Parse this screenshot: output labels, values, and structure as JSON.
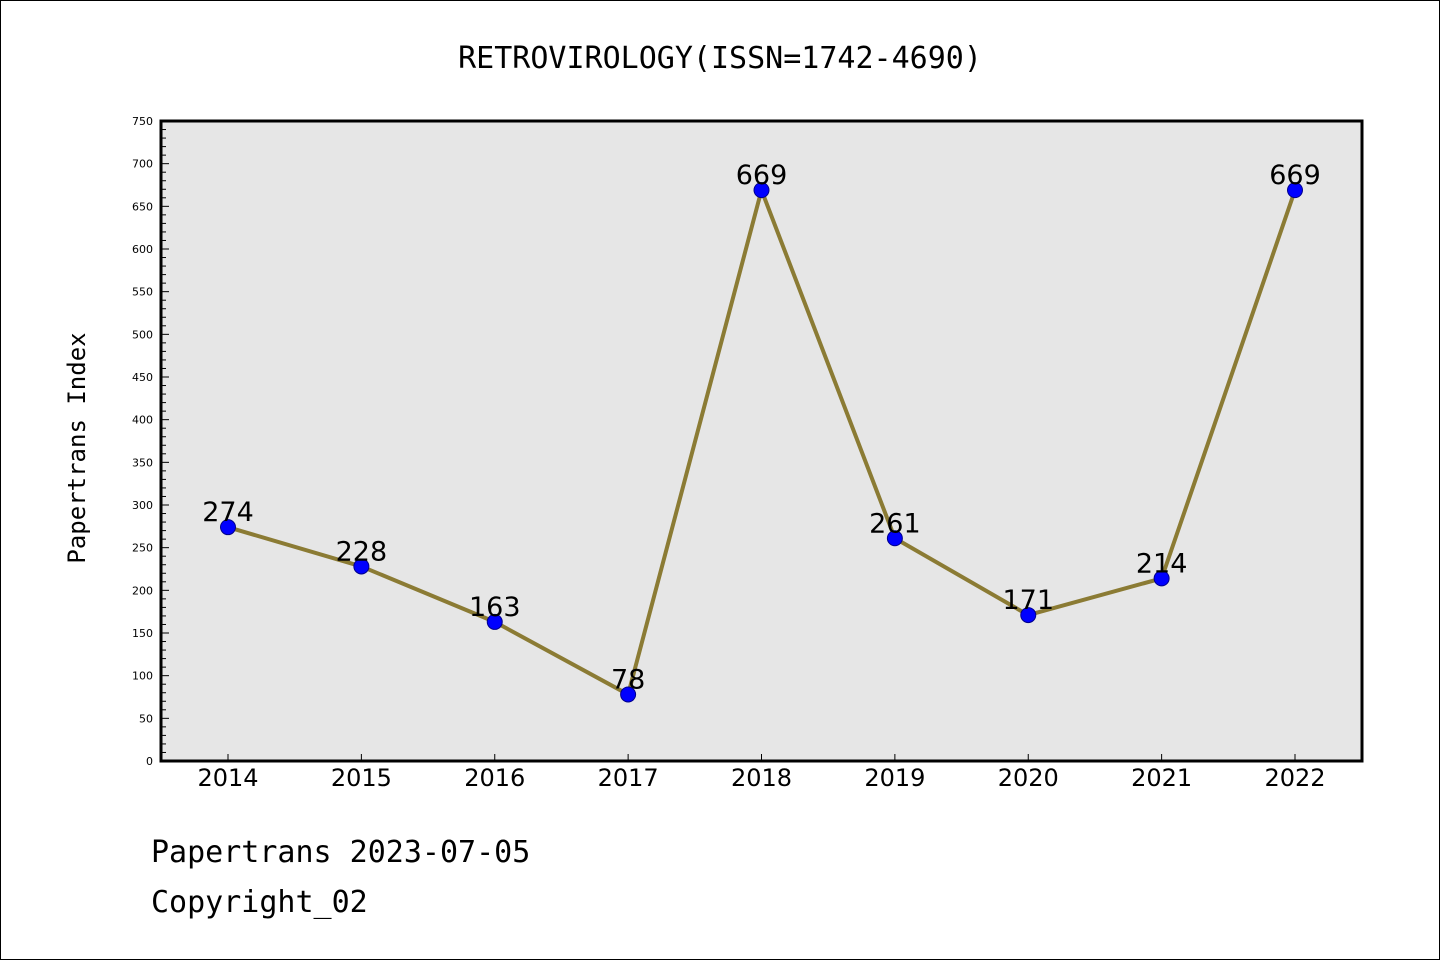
{
  "chart_data": {
    "type": "line",
    "title": "RETROVIROLOGY(ISSN=1742-4690)",
    "xlabel": "",
    "ylabel": "Papertrans Index",
    "categories": [
      "2014",
      "2015",
      "2016",
      "2017",
      "2018",
      "2019",
      "2020",
      "2021",
      "2022"
    ],
    "values": [
      274,
      228,
      163,
      78,
      669,
      261,
      171,
      214,
      669
    ],
    "data_labels": [
      "274",
      "228",
      "163",
      "78",
      "669",
      "261",
      "171",
      "214",
      "669"
    ],
    "ylim": [
      0,
      750
    ],
    "y_major_step": 50,
    "y_minor_step": 10,
    "y_tick_labels": [
      "0",
      "50",
      "100",
      "150",
      "200",
      "250",
      "300",
      "350",
      "400",
      "450",
      "500",
      "550",
      "600",
      "650",
      "700",
      "750"
    ],
    "grid": false,
    "legend": "none"
  },
  "footer": {
    "source_line": "Papertrans 2023-07-05",
    "copyright_line": "Copyright_02"
  },
  "colors": {
    "plot_background": "#e6e6e6",
    "line": "#8b7b34",
    "marker_fill": "#0000ff",
    "marker_stroke": "#00008b",
    "axis": "#000000",
    "text": "#000000",
    "page_background": "#ffffff"
  }
}
